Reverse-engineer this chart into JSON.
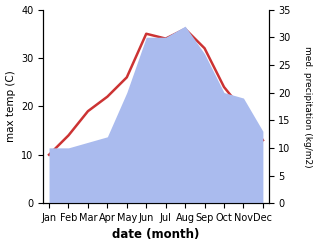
{
  "months": [
    "Jan",
    "Feb",
    "Mar",
    "Apr",
    "May",
    "Jun",
    "Jul",
    "Aug",
    "Sep",
    "Oct",
    "Nov",
    "Dec"
  ],
  "temperature": [
    10,
    14,
    19,
    22,
    26,
    35,
    34,
    36,
    32,
    24,
    19,
    13
  ],
  "precipitation": [
    10,
    10,
    11,
    12,
    20,
    30,
    30,
    32,
    27,
    20,
    19,
    13
  ],
  "temp_color": "#cc3333",
  "precip_color": "#aabbee",
  "xlabel": "date (month)",
  "ylabel_left": "max temp (C)",
  "ylabel_right": "med. precipitation (kg/m2)",
  "ylim_left": [
    0,
    40
  ],
  "ylim_right": [
    0,
    35
  ],
  "yticks_left": [
    0,
    10,
    20,
    30,
    40
  ],
  "yticks_right": [
    0,
    5,
    10,
    15,
    20,
    25,
    30,
    35
  ],
  "bg_color": "#ffffff",
  "line_width": 1.8
}
